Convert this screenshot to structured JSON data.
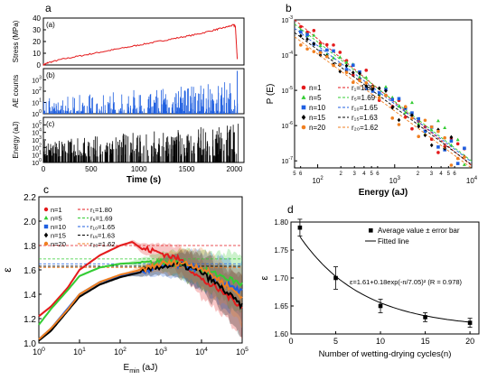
{
  "panels": {
    "a": {
      "letter": "a"
    },
    "b": {
      "letter": "b"
    },
    "c": {
      "letter": "c"
    },
    "d": {
      "letter": "d"
    }
  },
  "chart_data": [
    {
      "id": "a1",
      "type": "line",
      "panel_tag": "(a)",
      "xlabel": "Time (s)",
      "ylabel": "Stress (MPa)",
      "xlim": [
        0,
        2100
      ],
      "ylim": [
        0,
        40
      ],
      "xticks": [
        0,
        500,
        1000,
        1500,
        2000
      ],
      "yticks": [
        0,
        10,
        20,
        30,
        40
      ],
      "colors": {
        "line": "#e41a1c"
      },
      "series": [
        {
          "x": [
            0,
            50,
            200,
            400,
            600,
            800,
            1000,
            1200,
            1400,
            1600,
            1800,
            1900,
            1990,
            2010,
            2030
          ],
          "y": [
            0,
            2,
            5,
            8,
            11,
            14,
            17,
            20,
            23,
            26,
            30,
            32,
            34,
            33,
            5
          ]
        }
      ]
    },
    {
      "id": "a2",
      "type": "bar",
      "panel_tag": "(b)",
      "ylabel": "AE counts",
      "xlim": [
        0,
        2100
      ],
      "yscale": "log",
      "ylim_exp": [
        0,
        4
      ],
      "yticks_exp": [
        0,
        1,
        2,
        3
      ],
      "colors": {
        "bar": "#1f5fe0"
      }
    },
    {
      "id": "a3",
      "type": "bar",
      "panel_tag": "(c)",
      "ylabel": "Energy (aJ)",
      "xlim": [
        0,
        2100
      ],
      "yscale": "log",
      "ylim_exp": [
        0,
        6
      ],
      "yticks_exp": [
        0,
        1,
        2,
        3,
        4,
        5
      ],
      "colors": {
        "bar": "#000000"
      }
    },
    {
      "id": "b",
      "type": "scatter",
      "xlabel": "Energy (aJ)",
      "ylabel": "P (E)",
      "xscale": "log",
      "yscale": "log",
      "xlim_exp": [
        1.7,
        4.0
      ],
      "ylim_exp": [
        -7.2,
        -3.0
      ],
      "xticks_exp": [
        2,
        3,
        4
      ],
      "yticks_exp": [
        -7,
        -6,
        -5,
        -4,
        -3
      ],
      "minor_tick_labels": [
        "5",
        "6",
        "2",
        "3",
        "4",
        "5",
        "6",
        "2",
        "3",
        "4",
        "5",
        "6"
      ],
      "series": [
        {
          "name": "n=1",
          "marker": "circle",
          "color": "#e41a1c",
          "fit_label": "r₁=1.80",
          "slope": -1.8
        },
        {
          "name": "n=5",
          "marker": "triangle",
          "color": "#33cc33",
          "fit_label": "r₅=1.69",
          "slope": -1.69
        },
        {
          "name": "n=10",
          "marker": "square",
          "color": "#1f5fe0",
          "fit_label": "r₁₀=1.65",
          "slope": -1.65
        },
        {
          "name": "n=15",
          "marker": "diamond",
          "color": "#000000",
          "fit_label": "r₁₅=1.63",
          "slope": -1.63
        },
        {
          "name": "n=20",
          "marker": "circle",
          "color": "#f07f20",
          "fit_label": "r₂₀=1.62",
          "slope": -1.62
        }
      ]
    },
    {
      "id": "c",
      "type": "line",
      "xlabel": "E",
      "xlabel_sub": "min",
      "xlabel_unit": " (aJ)",
      "ylabel": "ε",
      "xscale": "log",
      "xlim_exp": [
        0,
        5
      ],
      "xticks_exp": [
        0,
        1,
        2,
        3,
        4,
        5
      ],
      "ylim": [
        1.0,
        2.2
      ],
      "yticks": [
        1.0,
        1.2,
        1.4,
        1.6,
        1.8,
        2.0,
        2.2
      ],
      "series": [
        {
          "name": "n=1",
          "color": "#e41a1c",
          "marker": "circle",
          "fit_label": "r₁=1.80",
          "fit": 1.8,
          "logx": [
            0,
            0.3,
            0.7,
            1.0,
            1.5,
            2.0,
            2.3,
            2.5,
            3.0,
            3.5,
            4.0,
            4.5,
            5.0
          ],
          "y": [
            1.22,
            1.3,
            1.45,
            1.6,
            1.72,
            1.8,
            1.83,
            1.78,
            1.74,
            1.68,
            1.52,
            1.42,
            1.3
          ]
        },
        {
          "name": "n=5",
          "color": "#33cc33",
          "marker": "triangle",
          "fit_label": "r₅=1.69",
          "fit": 1.69,
          "logx": [
            0,
            0.3,
            0.7,
            1.0,
            1.5,
            2.0,
            2.5,
            3.0,
            3.5,
            4.0,
            4.5,
            5.0
          ],
          "y": [
            1.15,
            1.28,
            1.43,
            1.55,
            1.62,
            1.65,
            1.66,
            1.67,
            1.65,
            1.6,
            1.55,
            1.48
          ]
        },
        {
          "name": "n=10",
          "color": "#1f5fe0",
          "marker": "square",
          "fit_label": "r₁₀=1.65",
          "fit": 1.65,
          "logx": [
            0,
            0.3,
            0.7,
            1.0,
            1.5,
            2.0,
            2.5,
            3.0,
            3.5,
            4.0,
            4.5,
            5.0
          ],
          "y": [
            1.03,
            1.12,
            1.28,
            1.4,
            1.5,
            1.55,
            1.58,
            1.62,
            1.64,
            1.6,
            1.5,
            1.42
          ]
        },
        {
          "name": "n=15",
          "color": "#000000",
          "marker": "diamond",
          "fit_label": "r₁₅=1.63",
          "fit": 1.63,
          "logx": [
            0,
            0.3,
            0.7,
            1.0,
            1.5,
            2.0,
            2.5,
            3.0,
            3.5,
            4.0,
            4.5,
            5.0
          ],
          "y": [
            1.02,
            1.1,
            1.26,
            1.38,
            1.48,
            1.54,
            1.58,
            1.63,
            1.64,
            1.58,
            1.45,
            1.3
          ]
        },
        {
          "name": "n=20",
          "color": "#f07f20",
          "marker": "circle",
          "fit_label": "r₂₀=1.62",
          "fit": 1.62,
          "logx": [
            0,
            0.3,
            0.7,
            1.0,
            1.5,
            2.0,
            2.5,
            3.0,
            3.5,
            4.0,
            4.5,
            5.0
          ],
          "y": [
            1.03,
            1.12,
            1.27,
            1.4,
            1.5,
            1.56,
            1.6,
            1.65,
            1.66,
            1.62,
            1.5,
            1.38
          ]
        }
      ]
    },
    {
      "id": "d",
      "type": "scatter",
      "xlabel": "Number of wetting-drying cycles(n)",
      "ylabel": "ε",
      "xlim": [
        0,
        21
      ],
      "ylim": [
        1.6,
        1.8
      ],
      "xticks": [
        0,
        5,
        10,
        15,
        20
      ],
      "yticks": [
        1.6,
        1.65,
        1.7,
        1.75,
        1.8
      ],
      "ytick_labels": [
        "1.60",
        "1.65",
        "1.70",
        "1.75",
        "1.80"
      ],
      "legend": {
        "points": "Average value ± error bar",
        "fit": "Fitted line"
      },
      "equation": "ε=1.61+0.18exp(-n/7.05)² (R = 0.978)",
      "x": [
        1,
        5,
        10,
        15,
        20
      ],
      "y": [
        1.79,
        1.7,
        1.65,
        1.63,
        1.62
      ],
      "err": [
        0.015,
        0.02,
        0.012,
        0.008,
        0.008
      ],
      "fit": {
        "a": 1.61,
        "b": 0.18,
        "tau": 7.05
      }
    }
  ]
}
